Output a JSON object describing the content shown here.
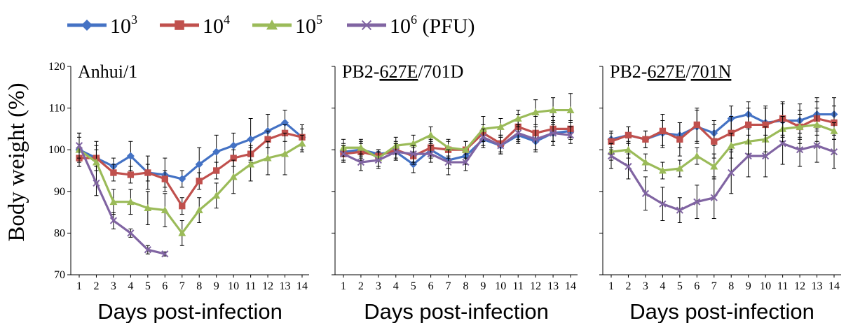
{
  "legend": [
    {
      "base": "10",
      "exp": "3",
      "suffix": "",
      "color": "#4472C4",
      "marker": "diamond"
    },
    {
      "base": "10",
      "exp": "4",
      "suffix": "",
      "color": "#C0504D",
      "marker": "square"
    },
    {
      "base": "10",
      "exp": "5",
      "suffix": "",
      "color": "#9BBB59",
      "marker": "triangle"
    },
    {
      "base": "10",
      "exp": "6",
      "suffix": " (PFU)",
      "color": "#8064A2",
      "marker": "x"
    }
  ],
  "chart_data": [
    {
      "type": "line",
      "title": "Anhui/1",
      "underline": [],
      "xlabel": "Days post-infection",
      "ylabel": "Body weight (%)",
      "ylim": [
        70,
        120
      ],
      "yticks": [
        70,
        80,
        90,
        100,
        110,
        120
      ],
      "x": [
        1,
        2,
        3,
        4,
        5,
        6,
        7,
        8,
        9,
        10,
        11,
        12,
        13,
        14
      ],
      "series": [
        {
          "values": [
            100,
            98,
            96,
            98.5,
            94.5,
            94,
            93,
            96.5,
            99.5,
            101,
            102.5,
            104.5,
            106.5,
            103
          ],
          "err": [
            3,
            3,
            2,
            3.5,
            4,
            4,
            2,
            4,
            4,
            3,
            5,
            4,
            3,
            3
          ]
        },
        {
          "values": [
            98,
            98,
            94.5,
            94,
            94.5,
            93,
            86.5,
            92.5,
            95,
            98,
            99,
            102.5,
            104,
            103
          ],
          "err": [
            2,
            2,
            2,
            2,
            2,
            2,
            2,
            2,
            2,
            2,
            2,
            2,
            2,
            2
          ]
        },
        {
          "values": [
            100,
            97,
            87.5,
            87.5,
            86,
            85.5,
            80,
            85.5,
            89,
            93.5,
            96.5,
            98,
            99,
            101.5
          ],
          "err": [
            4,
            5,
            3,
            3,
            4,
            4,
            3,
            3,
            3,
            4,
            4,
            4,
            5,
            2
          ]
        },
        {
          "values": [
            101,
            92,
            83,
            80,
            76,
            75,
            null,
            null,
            null,
            null,
            null,
            null,
            null,
            null
          ],
          "err": [
            3,
            3,
            2,
            1,
            1,
            0.5,
            0,
            0,
            0,
            0,
            0,
            0,
            0,
            0
          ]
        }
      ]
    },
    {
      "type": "line",
      "title": "PB2-627E/701D",
      "underline": [
        "627E"
      ],
      "xlabel": "Days post-infection",
      "ylabel": "",
      "ylim": [
        70,
        120
      ],
      "yticks": [
        70,
        80,
        90,
        100,
        110,
        120
      ],
      "x": [
        1,
        2,
        3,
        4,
        5,
        6,
        7,
        8,
        9,
        10,
        11,
        12,
        13,
        14
      ],
      "series": [
        {
          "values": [
            99.5,
            100,
            99,
            99.5,
            96.5,
            100,
            97.5,
            98.5,
            102.5,
            101,
            103.5,
            102,
            104,
            104.5
          ],
          "err": [
            2,
            2,
            1,
            2,
            2,
            2,
            2,
            2,
            2,
            2,
            2,
            2,
            2,
            2
          ]
        },
        {
          "values": [
            99,
            99.5,
            98.5,
            100,
            98.5,
            100.5,
            100,
            100,
            104,
            101.5,
            105.5,
            104,
            105,
            105
          ],
          "err": [
            2,
            2,
            1,
            2,
            2,
            2,
            2,
            2,
            2,
            2,
            3,
            4,
            3,
            2
          ]
        },
        {
          "values": [
            100.5,
            100.5,
            98,
            101,
            101.5,
            103.5,
            100.5,
            100,
            105,
            105.5,
            107.5,
            109,
            109.5,
            109.5
          ],
          "err": [
            2,
            2,
            2,
            2,
            2,
            2,
            2,
            2,
            3,
            2,
            2,
            3,
            3,
            4
          ]
        },
        {
          "values": [
            99,
            97,
            97.5,
            99.5,
            99,
            99,
            97,
            97,
            103,
            101,
            104,
            102.5,
            104,
            103.5
          ],
          "err": [
            2,
            2,
            2,
            2,
            2,
            2,
            3,
            2,
            2,
            2,
            2,
            3,
            3,
            2
          ]
        }
      ]
    },
    {
      "type": "line",
      "title": "PB2-627E/701N",
      "underline": [
        "627E",
        "701N"
      ],
      "xlabel": "Days post-infection",
      "ylabel": "",
      "ylim": [
        70,
        120
      ],
      "yticks": [
        70,
        80,
        90,
        100,
        110,
        120
      ],
      "x": [
        1,
        2,
        3,
        4,
        5,
        6,
        7,
        8,
        9,
        10,
        11,
        12,
        13,
        14
      ],
      "series": [
        {
          "values": [
            102.5,
            103.5,
            102.5,
            104,
            103.5,
            105.5,
            104,
            107.5,
            108.5,
            106.5,
            107,
            107,
            108.5,
            108.5
          ],
          "err": [
            2,
            2,
            2,
            3,
            3,
            4,
            3,
            3,
            3,
            4,
            4,
            4,
            4,
            4
          ]
        },
        {
          "values": [
            102,
            103.5,
            102.5,
            104.5,
            102.5,
            106,
            102,
            104,
            106,
            106,
            107.5,
            105.5,
            107.5,
            106.5
          ],
          "err": [
            2,
            2,
            2,
            4,
            4,
            4,
            4,
            4,
            4,
            4,
            4,
            4,
            4,
            4
          ]
        },
        {
          "values": [
            99.5,
            100,
            97,
            95,
            95.5,
            98.5,
            96,
            101,
            102,
            102.5,
            105,
            105.5,
            106,
            104.5
          ],
          "err": [
            2,
            2,
            2,
            2,
            2,
            2,
            3,
            3,
            3,
            3,
            3,
            3,
            4,
            2
          ]
        },
        {
          "values": [
            98.5,
            96,
            89.5,
            87,
            85.5,
            87.5,
            88.5,
            94.5,
            98.5,
            98.5,
            101.5,
            100,
            101,
            99.5
          ],
          "err": [
            3,
            3,
            4,
            4,
            3,
            4,
            5,
            5,
            5,
            5,
            5,
            4,
            4,
            4
          ]
        }
      ]
    }
  ]
}
